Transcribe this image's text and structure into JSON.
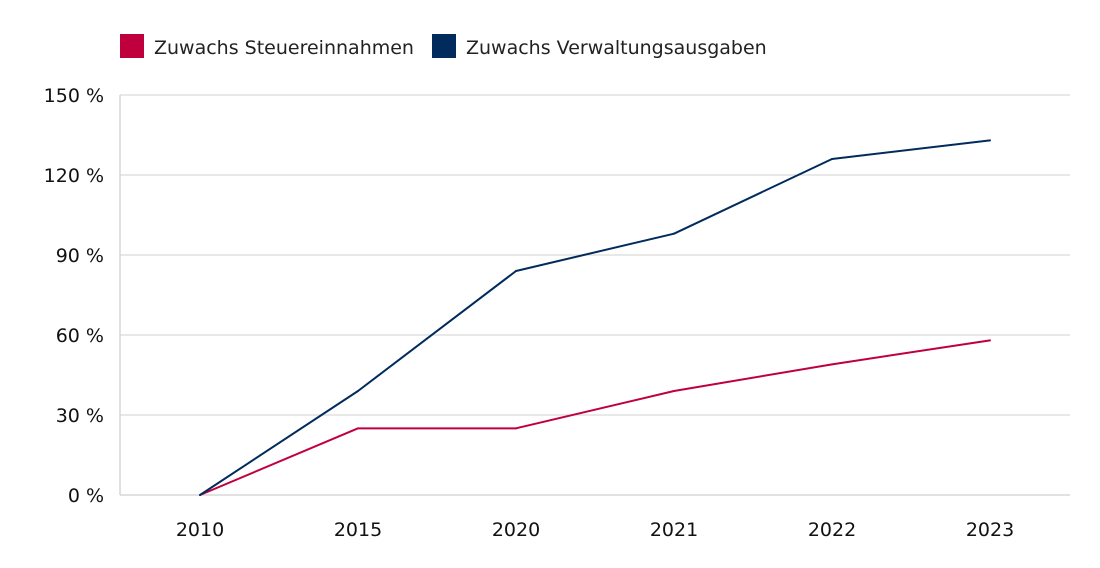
{
  "chart_data": {
    "type": "line",
    "title": "",
    "xlabel": "",
    "ylabel": "",
    "categories": [
      "2010",
      "2015",
      "2020",
      "2021",
      "2022",
      "2023"
    ],
    "series": [
      {
        "name": "Zuwachs Steuereinnahmen",
        "color": "#c0003c",
        "values": [
          0,
          25,
          25,
          39,
          49,
          58
        ]
      },
      {
        "name": "Zuwachs Verwaltungsausgaben",
        "color": "#002b5c",
        "values": [
          0,
          39,
          84,
          98,
          126,
          133
        ]
      }
    ],
    "ylim": [
      0,
      150
    ],
    "yticks": [
      0,
      30,
      60,
      90,
      120,
      150
    ],
    "ytick_labels": [
      "0 %",
      "30 %",
      "60 %",
      "90 %",
      "120 %",
      "150 %"
    ],
    "grid": true,
    "legend_position": "top-left"
  }
}
